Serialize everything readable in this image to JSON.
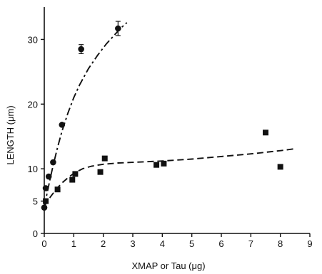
{
  "chart_data": {
    "type": "scatter",
    "title": "",
    "xlabel": "XMAP or Tau (μg)",
    "ylabel": "LENGTH (μm)",
    "xlim": [
      0,
      9
    ],
    "ylim": [
      0,
      35
    ],
    "xticks": [
      "0",
      "1",
      "2",
      "3",
      "4",
      "5",
      "6",
      "7",
      "8",
      "9"
    ],
    "yticks": [
      "0",
      "5",
      "10",
      "20",
      "30"
    ],
    "grid": false,
    "legend": "none",
    "series": [
      {
        "marker": "circle",
        "x": [
          0,
          0.05,
          0.15,
          0.3,
          0.6,
          1.25,
          2.5
        ],
        "y": [
          4.0,
          7.0,
          8.8,
          11.0,
          16.8,
          28.5,
          31.7
        ],
        "yerr": [
          0,
          0,
          0,
          0,
          0,
          0.7,
          1.1
        ],
        "fit": {
          "style": "dash-dot",
          "x": [
            0,
            0.1,
            0.2,
            0.3,
            0.45,
            0.6,
            0.8,
            1.0,
            1.2,
            1.5,
            1.8,
            2.1,
            2.4,
            2.6,
            2.8
          ],
          "y": [
            4.2,
            6.3,
            8.5,
            10.5,
            13.3,
            15.8,
            18.6,
            21.0,
            23.0,
            25.5,
            27.5,
            29.3,
            30.8,
            31.8,
            32.6
          ]
        }
      },
      {
        "marker": "square",
        "x": [
          0.05,
          0.45,
          0.95,
          1.05,
          1.9,
          2.05,
          3.8,
          4.05,
          7.5,
          8.0
        ],
        "y": [
          5.0,
          6.8,
          8.3,
          9.2,
          9.5,
          11.6,
          10.6,
          10.8,
          15.6,
          10.3
        ],
        "fit": {
          "style": "dashed",
          "x": [
            0,
            0.2,
            0.4,
            0.6,
            0.8,
            1.0,
            1.3,
            1.6,
            2.0,
            2.5,
            3.0,
            4.0,
            5.0,
            6.0,
            7.0,
            8.0,
            8.5
          ],
          "y": [
            4.2,
            5.6,
            6.8,
            7.8,
            8.6,
            9.3,
            10.0,
            10.4,
            10.7,
            10.9,
            11.0,
            11.2,
            11.5,
            11.9,
            12.3,
            12.8,
            13.1
          ]
        }
      }
    ]
  }
}
